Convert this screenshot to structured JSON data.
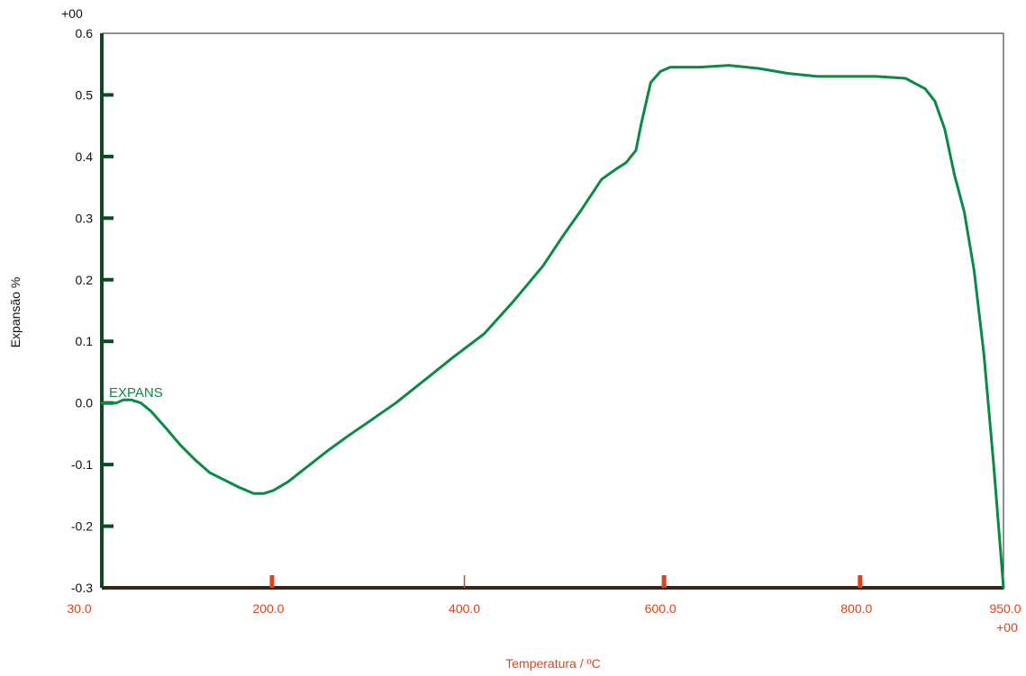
{
  "colors": {
    "series": "#0a8a44",
    "y_axis": "#0b4a22",
    "x_axis": "#3a2418",
    "x_text": "#e0421a",
    "y_text": "#111111"
  },
  "chart_data": {
    "type": "line",
    "top_corner_label": "+00",
    "bottom_corner_label": "+00",
    "xlabel": "Temperatura / ºC",
    "ylabel": "Expansão %",
    "xlim": [
      30,
      950
    ],
    "ylim": [
      -0.3,
      0.6
    ],
    "x_tick_labels": [
      "30.0",
      "200.0",
      "400.0",
      "600.0",
      "800.0",
      "950.0"
    ],
    "x_tick_values": [
      30,
      200,
      400,
      600,
      800,
      950
    ],
    "x_tick_marks": [
      200,
      400,
      600,
      800
    ],
    "y_ticks": [
      0.6,
      0.5,
      0.4,
      0.3,
      0.2,
      0.1,
      0.0,
      -0.1,
      -0.2,
      -0.3
    ],
    "y_tick_labels": [
      "0.6",
      "0.5",
      "0.4",
      "0.3",
      "0.2",
      "0.1",
      "0.0",
      "-0.1",
      "-0.2",
      "-0.3"
    ],
    "grid": false,
    "series": [
      {
        "name": "EXPANS",
        "x": [
          30,
          38,
          45,
          52,
          60,
          70,
          80,
          95,
          110,
          125,
          140,
          155,
          170,
          185,
          195,
          205,
          220,
          240,
          260,
          280,
          300,
          330,
          360,
          390,
          420,
          450,
          480,
          500,
          520,
          540,
          555,
          565,
          575,
          580,
          590,
          600,
          610,
          620,
          640,
          670,
          700,
          730,
          760,
          790,
          820,
          850,
          870,
          880,
          890,
          900,
          910,
          920,
          930,
          940,
          950
        ],
        "values": [
          0.0,
          0.0,
          0.0,
          0.005,
          0.005,
          0.0,
          -0.013,
          -0.04,
          -0.068,
          -0.092,
          -0.113,
          -0.125,
          -0.137,
          -0.147,
          -0.147,
          -0.142,
          -0.128,
          -0.103,
          -0.078,
          -0.055,
          -0.033,
          0.0,
          0.038,
          0.076,
          0.112,
          0.165,
          0.222,
          0.27,
          0.315,
          0.363,
          0.38,
          0.39,
          0.41,
          0.45,
          0.52,
          0.538,
          0.545,
          0.545,
          0.545,
          0.548,
          0.543,
          0.535,
          0.53,
          0.53,
          0.53,
          0.527,
          0.51,
          0.49,
          0.445,
          0.37,
          0.31,
          0.215,
          0.08,
          -0.1,
          -0.3
        ]
      }
    ]
  }
}
